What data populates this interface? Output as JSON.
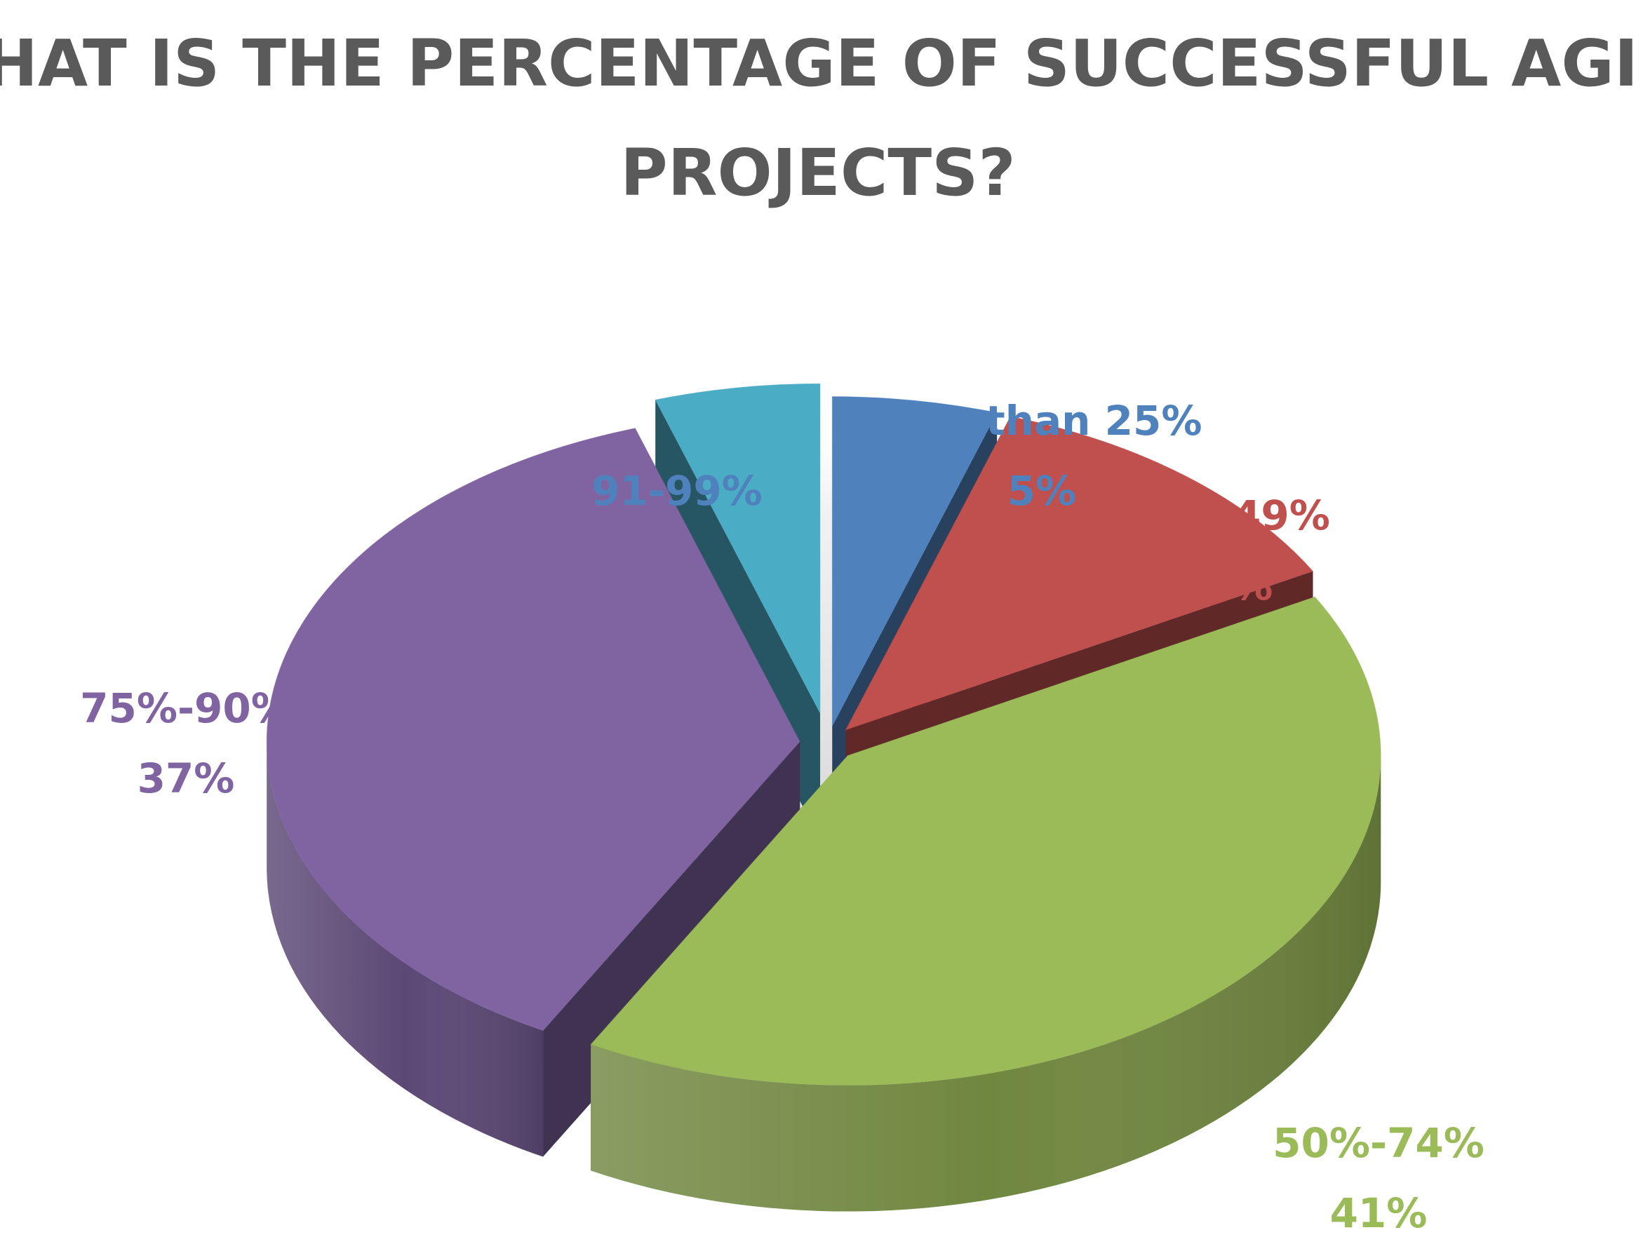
{
  "chart_data": {
    "type": "pie",
    "title": "WHAT IS THE PERCENTAGE OF SUCCESSFUL AGILE PROJECTS?",
    "title_lines": [
      "WHAT IS THE PERCENTAGE OF SUCCESSFUL AGILE",
      "PROJECTS?"
    ],
    "slices": [
      {
        "key": "lt25",
        "label": "less than 25%",
        "value_label": "5%",
        "value": 5,
        "color": "#4f81bd",
        "label_color": "#4f81bd"
      },
      {
        "key": "p25_49",
        "label": "25%-49%",
        "value_label": "12%",
        "value": 12,
        "color": "#c0504d",
        "label_color": "#c0504d"
      },
      {
        "key": "p50_74",
        "label": "50%-74%",
        "value_label": "41%",
        "value": 41,
        "color": "#9bbb59",
        "label_color": "#9bbb59"
      },
      {
        "key": "p75_90",
        "label": "75%-90%",
        "value_label": "37%",
        "value": 37,
        "color": "#8064a2",
        "label_color": "#8064a2"
      },
      {
        "key": "p91_99",
        "label": "91-99%",
        "value_label": "",
        "value": 5,
        "color": "#4bacc6",
        "label_color": "#4f81bd"
      }
    ],
    "legend": "none",
    "style": "3d-exploded"
  }
}
